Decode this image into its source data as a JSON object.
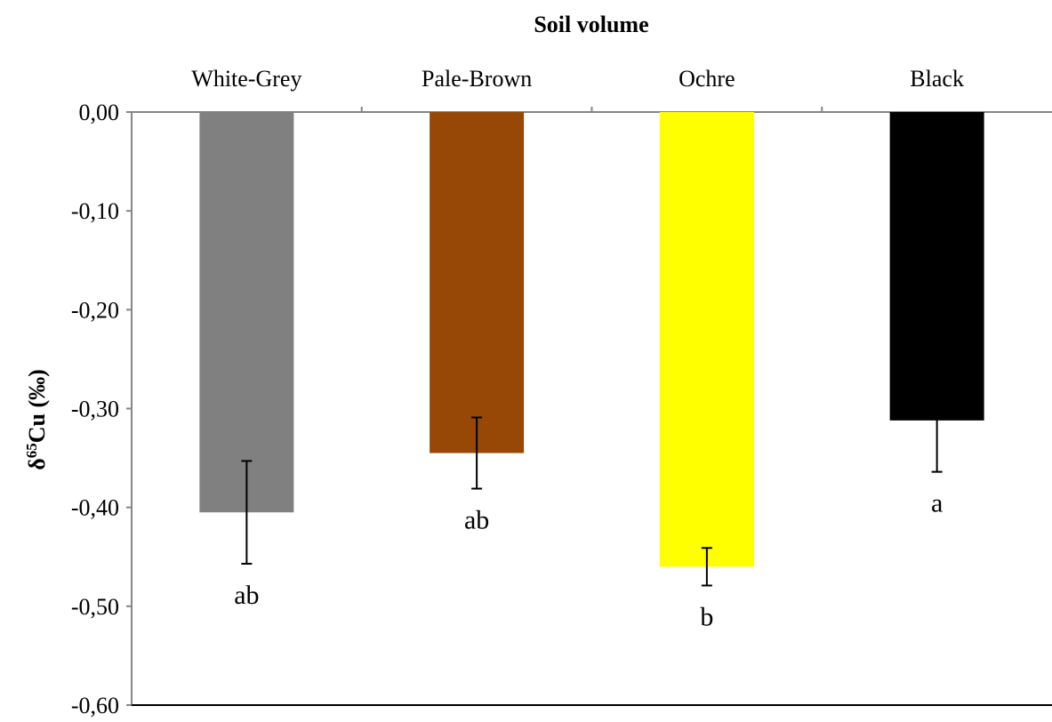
{
  "chart_data": {
    "type": "bar",
    "title": "Soil volume",
    "ylabel_main": "δ",
    "ylabel_sup": "65",
    "ylabel_rest": "Cu (‰)",
    "xlabel": "",
    "categories": [
      "White-Grey",
      "Pale-Brown",
      "Ochre",
      "Black"
    ],
    "values": [
      -0.405,
      -0.345,
      -0.46,
      -0.312
    ],
    "errors": [
      0.052,
      0.036,
      0.019,
      0.052
    ],
    "significance": [
      "ab",
      "ab",
      "b",
      "a"
    ],
    "colors": [
      "#808080",
      "#974806",
      "#FFFF00",
      "#000000"
    ],
    "ylim": [
      -0.6,
      0.0
    ],
    "yticks": [
      "0,00",
      "-0,10",
      "-0,20",
      "-0,30",
      "-0,40",
      "-0,50",
      "-0,60"
    ],
    "ytick_values": [
      0.0,
      -0.1,
      -0.2,
      -0.3,
      -0.4,
      -0.5,
      -0.6
    ],
    "category_axis_position": "top",
    "grid": false,
    "legend": "none"
  }
}
